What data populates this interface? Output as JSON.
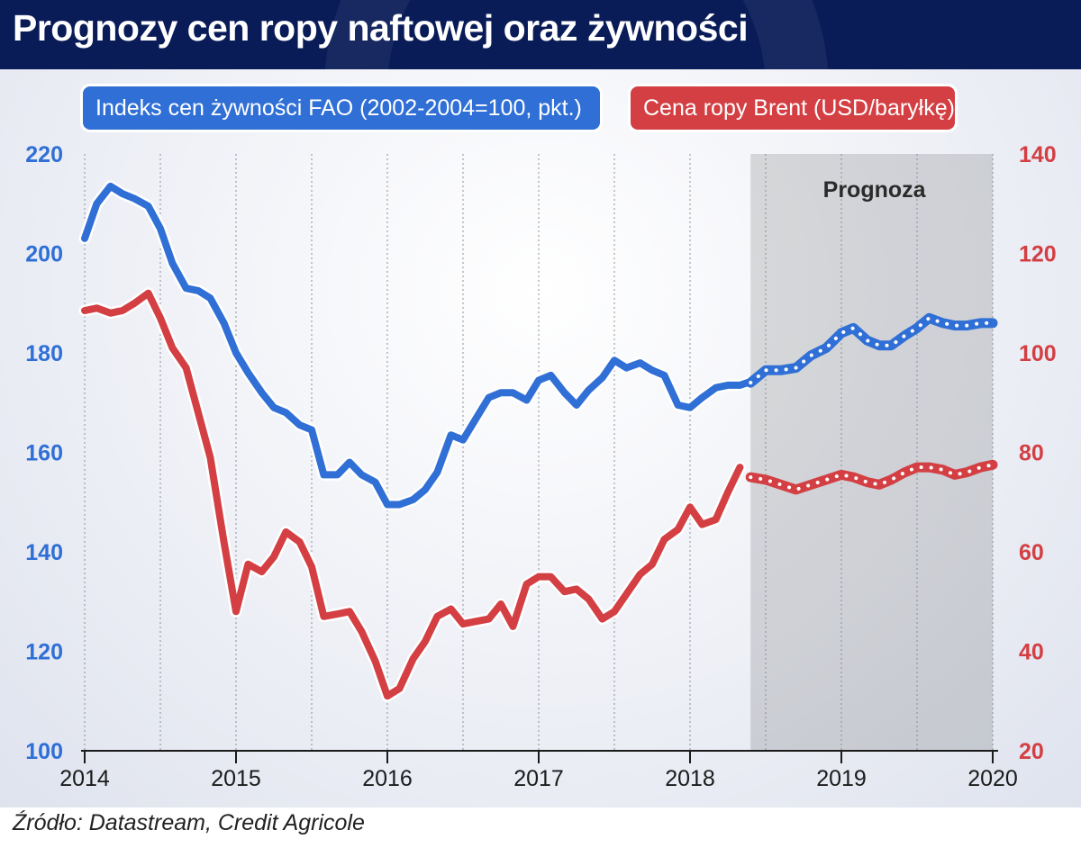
{
  "title": "Prognozy cen ropy naftowej oraz żywności",
  "source": "Źródło: Datastream, Credit Agricole",
  "chart_data": {
    "type": "line",
    "x_range": [
      2014.0,
      2020.0
    ],
    "xticks": [
      "2014",
      "2015",
      "2016",
      "2017",
      "2018",
      "2019",
      "2020"
    ],
    "forecast_start": 2018.4,
    "forecast_end": 2020.0,
    "forecast_label": "Prognoza",
    "yleft": {
      "ylim": [
        100,
        220
      ],
      "ticks": [
        "100",
        "120",
        "140",
        "160",
        "180",
        "200",
        "220"
      ],
      "color": "#2f6fd6"
    },
    "yright": {
      "ylim": [
        20,
        140
      ],
      "ticks": [
        "20",
        "40",
        "60",
        "80",
        "100",
        "120",
        "140"
      ],
      "color": "#d33f43"
    },
    "grid": "vertical-dotted",
    "series": [
      {
        "name": "Indeks cen żywności FAO (2002-2004=100, pkt.)",
        "axis": "left",
        "color": "#2f6fd6",
        "actual": [
          [
            2014.0,
            203
          ],
          [
            2014.08,
            210
          ],
          [
            2014.17,
            213.5
          ],
          [
            2014.25,
            212
          ],
          [
            2014.33,
            211
          ],
          [
            2014.42,
            209.5
          ],
          [
            2014.5,
            205
          ],
          [
            2014.58,
            198
          ],
          [
            2014.67,
            193
          ],
          [
            2014.75,
            192.5
          ],
          [
            2014.83,
            191
          ],
          [
            2014.92,
            186
          ],
          [
            2015.0,
            180
          ],
          [
            2015.08,
            176
          ],
          [
            2015.17,
            172
          ],
          [
            2015.25,
            169
          ],
          [
            2015.33,
            168
          ],
          [
            2015.42,
            165.5
          ],
          [
            2015.5,
            164.5
          ],
          [
            2015.58,
            155.5
          ],
          [
            2015.67,
            155.5
          ],
          [
            2015.75,
            158
          ],
          [
            2015.83,
            155.5
          ],
          [
            2015.92,
            154
          ],
          [
            2016.0,
            149.5
          ],
          [
            2016.08,
            149.5
          ],
          [
            2016.17,
            150.5
          ],
          [
            2016.25,
            152.5
          ],
          [
            2016.33,
            156
          ],
          [
            2016.42,
            163.5
          ],
          [
            2016.5,
            162.5
          ],
          [
            2016.58,
            166.5
          ],
          [
            2016.67,
            171
          ],
          [
            2016.75,
            172
          ],
          [
            2016.83,
            172
          ],
          [
            2016.92,
            170.5
          ],
          [
            2017.0,
            174.5
          ],
          [
            2017.08,
            175.5
          ],
          [
            2017.17,
            172
          ],
          [
            2017.25,
            169.5
          ],
          [
            2017.33,
            172.5
          ],
          [
            2017.42,
            175
          ],
          [
            2017.5,
            178.5
          ],
          [
            2017.58,
            177
          ],
          [
            2017.67,
            178
          ],
          [
            2017.75,
            176.5
          ],
          [
            2017.83,
            175.5
          ],
          [
            2017.92,
            169.5
          ],
          [
            2018.0,
            169
          ],
          [
            2018.08,
            171
          ],
          [
            2018.17,
            173
          ],
          [
            2018.25,
            173.5
          ],
          [
            2018.33,
            173.5
          ],
          [
            2018.38,
            174
          ]
        ],
        "forecast": [
          [
            2018.4,
            174
          ],
          [
            2018.5,
            176.5
          ],
          [
            2018.6,
            176.5
          ],
          [
            2018.7,
            177
          ],
          [
            2018.8,
            179.5
          ],
          [
            2018.9,
            181
          ],
          [
            2019.0,
            184
          ],
          [
            2019.08,
            185
          ],
          [
            2019.17,
            182.5
          ],
          [
            2019.25,
            181.5
          ],
          [
            2019.33,
            181.5
          ],
          [
            2019.42,
            183.5
          ],
          [
            2019.5,
            185
          ],
          [
            2019.58,
            187
          ],
          [
            2019.67,
            186
          ],
          [
            2019.75,
            185.5
          ],
          [
            2019.83,
            185.5
          ],
          [
            2019.92,
            186
          ],
          [
            2020.0,
            186
          ]
        ]
      },
      {
        "name": "Cena ropy Brent (USD/baryłkę)",
        "axis": "right",
        "color": "#d33f43",
        "actual": [
          [
            2014.0,
            108.5
          ],
          [
            2014.08,
            109
          ],
          [
            2014.17,
            108
          ],
          [
            2014.25,
            108.5
          ],
          [
            2014.33,
            110
          ],
          [
            2014.42,
            112
          ],
          [
            2014.5,
            107
          ],
          [
            2014.58,
            101
          ],
          [
            2014.67,
            97
          ],
          [
            2014.75,
            88
          ],
          [
            2014.83,
            79
          ],
          [
            2014.92,
            62
          ],
          [
            2015.0,
            48
          ],
          [
            2015.08,
            57.5
          ],
          [
            2015.17,
            56
          ],
          [
            2015.25,
            59
          ],
          [
            2015.33,
            64
          ],
          [
            2015.42,
            62
          ],
          [
            2015.5,
            57
          ],
          [
            2015.58,
            47
          ],
          [
            2015.67,
            47.5
          ],
          [
            2015.75,
            48
          ],
          [
            2015.83,
            44
          ],
          [
            2015.92,
            38
          ],
          [
            2016.0,
            31
          ],
          [
            2016.08,
            32.5
          ],
          [
            2016.17,
            38.5
          ],
          [
            2016.25,
            42
          ],
          [
            2016.33,
            47
          ],
          [
            2016.42,
            48.5
          ],
          [
            2016.5,
            45.5
          ],
          [
            2016.58,
            46
          ],
          [
            2016.67,
            46.5
          ],
          [
            2016.75,
            49.5
          ],
          [
            2016.83,
            45
          ],
          [
            2016.92,
            53.5
          ],
          [
            2017.0,
            55
          ],
          [
            2017.08,
            55
          ],
          [
            2017.17,
            52
          ],
          [
            2017.25,
            52.5
          ],
          [
            2017.33,
            50.5
          ],
          [
            2017.42,
            46.5
          ],
          [
            2017.5,
            48
          ],
          [
            2017.58,
            51.5
          ],
          [
            2017.67,
            55.5
          ],
          [
            2017.75,
            57.5
          ],
          [
            2017.83,
            62.5
          ],
          [
            2017.92,
            64.5
          ],
          [
            2018.0,
            69
          ],
          [
            2018.08,
            65.5
          ],
          [
            2018.17,
            66.5
          ],
          [
            2018.25,
            72
          ],
          [
            2018.33,
            77
          ]
        ],
        "forecast": [
          [
            2018.4,
            75
          ],
          [
            2018.5,
            74.5
          ],
          [
            2018.6,
            73.5
          ],
          [
            2018.7,
            72.5
          ],
          [
            2018.8,
            73.5
          ],
          [
            2018.9,
            74.5
          ],
          [
            2019.0,
            75.5
          ],
          [
            2019.08,
            75
          ],
          [
            2019.17,
            74
          ],
          [
            2019.25,
            73.5
          ],
          [
            2019.33,
            74.5
          ],
          [
            2019.42,
            76
          ],
          [
            2019.5,
            77
          ],
          [
            2019.58,
            77
          ],
          [
            2019.67,
            76.5
          ],
          [
            2019.75,
            75.5
          ],
          [
            2019.83,
            76
          ],
          [
            2019.92,
            77
          ],
          [
            2020.0,
            77.5
          ]
        ]
      }
    ]
  }
}
